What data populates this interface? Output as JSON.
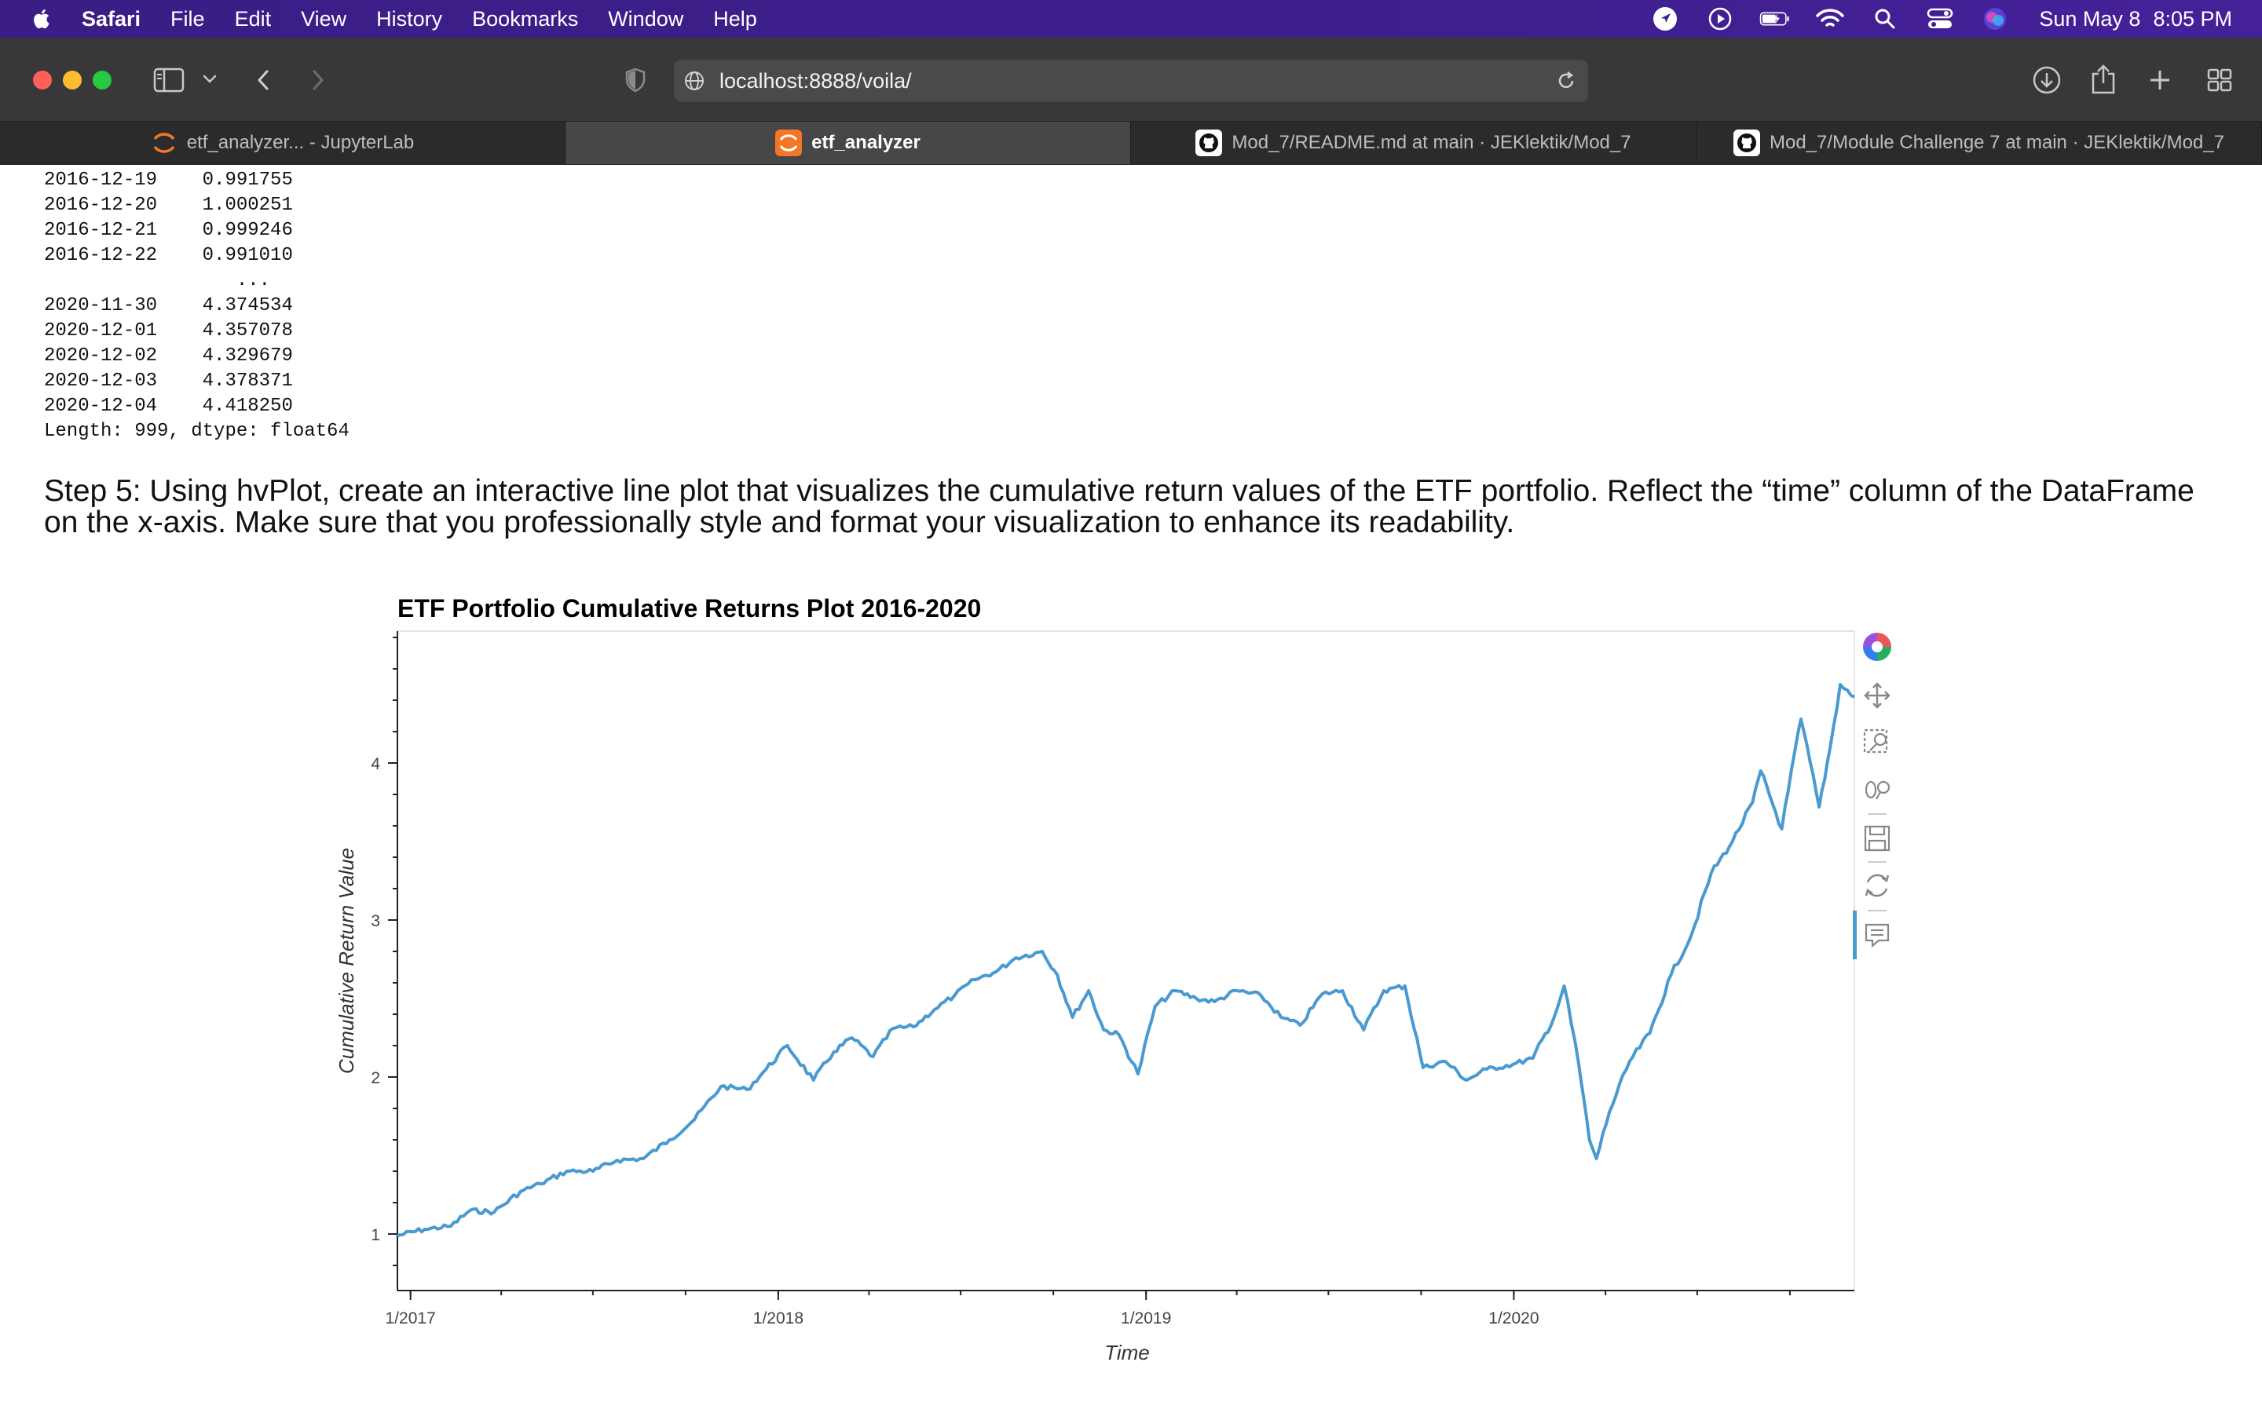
{
  "menubar": {
    "app": "Safari",
    "items": [
      "File",
      "Edit",
      "View",
      "History",
      "Bookmarks",
      "Window",
      "Help"
    ],
    "date": "Sun May 8",
    "time": "8:05 PM"
  },
  "toolbar": {
    "url": "localhost:8888/voila/"
  },
  "tabs": [
    {
      "label": "etf_analyzer... - JupyterLab",
      "icon": "jupyter-icon",
      "active": false
    },
    {
      "label": "etf_analyzer",
      "icon": "jupyter-icon",
      "active": true
    },
    {
      "label": "Mod_7/README.md at main · JEKlektik/Mod_7",
      "icon": "github-icon",
      "active": false
    },
    {
      "label": "Mod_7/Module Challenge 7 at main · JEKlektik/Mod_7",
      "icon": "github-icon",
      "active": false
    }
  ],
  "output": {
    "rows": [
      {
        "date": "2016-12-19",
        "value": "0.991755"
      },
      {
        "date": "2016-12-20",
        "value": "1.000251"
      },
      {
        "date": "2016-12-21",
        "value": "0.999246"
      },
      {
        "date": "2016-12-22",
        "value": "0.991010"
      },
      {
        "date": "",
        "value": "..."
      },
      {
        "date": "2020-11-30",
        "value": "4.374534"
      },
      {
        "date": "2020-12-01",
        "value": "4.357078"
      },
      {
        "date": "2020-12-02",
        "value": "4.329679"
      },
      {
        "date": "2020-12-03",
        "value": "4.378371"
      },
      {
        "date": "2020-12-04",
        "value": "4.418250"
      }
    ],
    "footer": "Length: 999, dtype: float64"
  },
  "step5": {
    "text": "Step 5: Using hvPlot, create an interactive line plot that visualizes the cumulative return values of the ETF portfolio. Reflect the “time” column of the DataFrame on the x-axis. Make sure that you professionally style and format your visualization to enhance its readability."
  },
  "chart_data": {
    "type": "line",
    "title": "ETF Portfolio Cumulative Returns Plot 2016-2020",
    "xlabel": "Time",
    "ylabel": "Cumulative Return Value",
    "xlim": [
      "2016-12-19",
      "2020-12-04"
    ],
    "ylim": [
      0.64,
      4.84
    ],
    "x_ticks": [
      "1/2017",
      "1/2018",
      "1/2019",
      "1/2020"
    ],
    "y_ticks": [
      1,
      2,
      3,
      4
    ],
    "grid": false,
    "line_color": "#4a9ad0",
    "series": [
      {
        "x": [
          "2016-12-19",
          "2017-01-15",
          "2017-02-10",
          "2017-03-01",
          "2017-03-25",
          "2017-04-20",
          "2017-05-10",
          "2017-06-05",
          "2017-07-01",
          "2017-07-25",
          "2017-08-20",
          "2017-09-15",
          "2017-10-10",
          "2017-11-05",
          "2017-12-01",
          "2017-12-20",
          "2018-01-10",
          "2018-02-05",
          "2018-02-25",
          "2018-03-15",
          "2018-04-05",
          "2018-04-25",
          "2018-05-15",
          "2018-06-05",
          "2018-06-25",
          "2018-07-15",
          "2018-08-05",
          "2018-08-25",
          "2018-09-20",
          "2018-10-05",
          "2018-10-20",
          "2018-11-05",
          "2018-11-20",
          "2018-12-05",
          "2018-12-24",
          "2019-01-10",
          "2019-01-30",
          "2019-02-20",
          "2019-03-10",
          "2019-04-01",
          "2019-04-25",
          "2019-05-15",
          "2019-06-03",
          "2019-06-25",
          "2019-07-15",
          "2019-08-05",
          "2019-08-25",
          "2019-09-15",
          "2019-10-03",
          "2019-10-25",
          "2019-11-15",
          "2019-12-05",
          "2019-12-31",
          "2020-01-20",
          "2020-02-10",
          "2020-02-20",
          "2020-03-05",
          "2020-03-16",
          "2020-03-23",
          "2020-04-05",
          "2020-04-25",
          "2020-05-15",
          "2020-06-05",
          "2020-06-25",
          "2020-07-15",
          "2020-08-05",
          "2020-08-25",
          "2020-09-02",
          "2020-09-23",
          "2020-10-12",
          "2020-10-30",
          "2020-11-10",
          "2020-11-20",
          "2020-12-04"
        ],
        "y": [
          0.99,
          1.03,
          1.05,
          1.15,
          1.14,
          1.27,
          1.32,
          1.4,
          1.4,
          1.47,
          1.48,
          1.6,
          1.73,
          1.94,
          1.92,
          2.05,
          2.2,
          1.98,
          2.16,
          2.25,
          2.13,
          2.31,
          2.32,
          2.43,
          2.52,
          2.62,
          2.67,
          2.76,
          2.8,
          2.65,
          2.38,
          2.55,
          2.3,
          2.27,
          2.02,
          2.45,
          2.55,
          2.5,
          2.48,
          2.55,
          2.52,
          2.38,
          2.33,
          2.53,
          2.55,
          2.3,
          2.55,
          2.58,
          2.06,
          2.1,
          1.98,
          2.05,
          2.08,
          2.12,
          2.38,
          2.58,
          2.1,
          1.6,
          1.48,
          1.78,
          2.1,
          2.28,
          2.65,
          2.9,
          3.3,
          3.5,
          3.75,
          3.95,
          3.58,
          4.28,
          3.72,
          4.1,
          4.5,
          4.42
        ]
      }
    ]
  }
}
